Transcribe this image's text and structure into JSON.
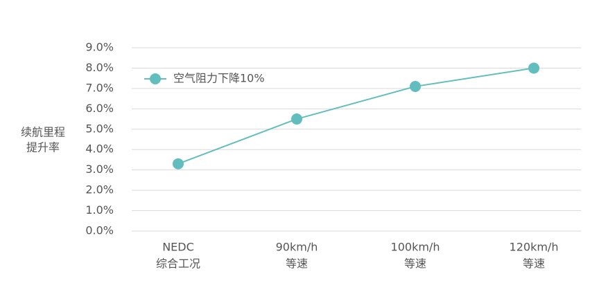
{
  "chart_data": {
    "type": "line",
    "ylabel": [
      "续航里程",
      "提升率"
    ],
    "categories": [
      [
        "NEDC",
        "综合工况"
      ],
      [
        "90km/h",
        "等速"
      ],
      [
        "100km/h",
        "等速"
      ],
      [
        "120km/h",
        "等速"
      ]
    ],
    "series": [
      {
        "name": "空气阻力下降10%",
        "color": "#62bdbe",
        "values": [
          3.3,
          5.5,
          7.1,
          8.0
        ]
      }
    ],
    "ylim": [
      0,
      9
    ],
    "yticks": [
      {
        "value": 0,
        "label": "0.0%"
      },
      {
        "value": 1,
        "label": "1.0%"
      },
      {
        "value": 2,
        "label": "2.0%"
      },
      {
        "value": 3,
        "label": "3.0%"
      },
      {
        "value": 4,
        "label": "4.0%"
      },
      {
        "value": 5,
        "label": "5.0%"
      },
      {
        "value": 6,
        "label": "6.0%"
      },
      {
        "value": 7,
        "label": "7.0%"
      },
      {
        "value": 8,
        "label": "8.0%"
      },
      {
        "value": 9,
        "label": "9.0%"
      }
    ],
    "grid": true,
    "legend": "upper-left"
  }
}
